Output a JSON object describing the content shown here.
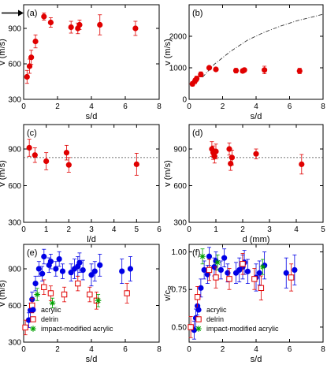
{
  "chart_data": [
    {
      "panel": "(a)",
      "type": "scatter",
      "xlabel": "s/d",
      "ylabel": "v (m/s)",
      "xlim": [
        0,
        8
      ],
      "ylim": [
        300,
        1100
      ],
      "xticks": [
        "0",
        "2",
        "4",
        "6",
        "8"
      ],
      "yticks": [
        "300",
        "600",
        "900"
      ],
      "annotation": "arrow at v = 1030 m/s",
      "series": [
        {
          "marker": "filled-circle",
          "color": "#e00000",
          "x": [
            0.2,
            0.35,
            0.45,
            0.7,
            1.2,
            1.6,
            2.8,
            3.2,
            3.3,
            4.5,
            6.6
          ],
          "y": [
            490,
            580,
            655,
            790,
            1000,
            950,
            910,
            900,
            930,
            930,
            900
          ],
          "err": [
            55,
            60,
            60,
            55,
            30,
            40,
            50,
            45,
            40,
            85,
            60
          ]
        }
      ]
    },
    {
      "panel": "(b)",
      "type": "scatter",
      "xlabel": "s/d",
      "ylabel": "v (m/s)",
      "xlim": [
        0,
        8
      ],
      "ylim": [
        0,
        3000
      ],
      "xticks": [
        "0",
        "2",
        "4",
        "6",
        "8"
      ],
      "yticks": [
        "0",
        "1000",
        "2000"
      ],
      "series": [
        {
          "marker": "filled-circle",
          "color": "#e00000",
          "x": [
            0.2,
            0.35,
            0.45,
            0.7,
            1.2,
            1.6,
            2.8,
            3.2,
            3.3,
            4.5,
            6.6
          ],
          "y": [
            490,
            580,
            655,
            790,
            1000,
            950,
            910,
            900,
            930,
            930,
            900
          ],
          "err": [
            70,
            80,
            80,
            80,
            40,
            55,
            70,
            65,
            60,
            120,
            85
          ]
        }
      ],
      "fit_curve": {
        "style": "dash-dot",
        "x": [
          0.8,
          1.5,
          2.5,
          3.5,
          4.5,
          5.5,
          6.5,
          7.5,
          8.0
        ],
        "y": [
          700,
          1110,
          1530,
          1880,
          2130,
          2330,
          2500,
          2630,
          2700
        ]
      }
    },
    {
      "panel": "(c)",
      "type": "scatter",
      "xlabel": "l/d",
      "ylabel": "v (m/s)",
      "xlim": [
        0,
        6
      ],
      "ylim": [
        300,
        1100
      ],
      "xticks": [
        "0",
        "1",
        "2",
        "3",
        "4",
        "5",
        "6"
      ],
      "yticks": [
        "300",
        "600",
        "900"
      ],
      "reference_line": {
        "style": "dashed",
        "y": 830
      },
      "series": [
        {
          "marker": "filled-circle",
          "color": "#e00000",
          "x": [
            0.25,
            0.5,
            1.0,
            1.9,
            2.0,
            5.0
          ],
          "y": [
            910,
            850,
            800,
            870,
            770,
            775
          ],
          "err": [
            70,
            60,
            70,
            60,
            60,
            90
          ]
        }
      ]
    },
    {
      "panel": "(d)",
      "type": "scatter",
      "xlabel": "d (mm)",
      "ylabel": "v (m/s)",
      "xlim": [
        0,
        5
      ],
      "ylim": [
        300,
        1100
      ],
      "xticks": [
        "0",
        "1",
        "2",
        "3",
        "4",
        "5"
      ],
      "yticks": [
        "300",
        "600",
        "900"
      ],
      "reference_line": {
        "style": "dashed",
        "y": 830
      },
      "series": [
        {
          "marker": "filled-circle",
          "color": "#e00000",
          "x": [
            0.85,
            0.9,
            0.95,
            1.0,
            1.5,
            1.55,
            1.6,
            2.5,
            4.2
          ],
          "y": [
            900,
            870,
            840,
            880,
            900,
            780,
            830,
            860,
            775
          ],
          "err": [
            60,
            55,
            55,
            60,
            50,
            55,
            60,
            40,
            80
          ]
        }
      ]
    },
    {
      "panel": "(e)",
      "type": "scatter",
      "xlabel": "s/d",
      "ylabel": "v (m/s)",
      "xlim": [
        0,
        8
      ],
      "ylim": [
        300,
        1100
      ],
      "xticks": [
        "0",
        "2",
        "4",
        "6",
        "8"
      ],
      "yticks": [
        "300",
        "600",
        "900"
      ],
      "legend_position": "bottom-right",
      "series": [
        {
          "name": "acrylic",
          "marker": "filled-circle",
          "color": "#0000e6",
          "x": [
            0.3,
            0.4,
            0.5,
            0.7,
            0.9,
            1.1,
            1.2,
            1.5,
            1.6,
            1.9,
            2.1,
            2.3,
            2.8,
            3.0,
            3.2,
            3.3,
            3.5,
            4.0,
            4.2,
            4.5,
            5.8,
            6.3
          ],
          "y": [
            480,
            560,
            650,
            780,
            900,
            860,
            1000,
            930,
            960,
            900,
            980,
            880,
            870,
            900,
            920,
            950,
            890,
            850,
            880,
            930,
            880,
            900
          ],
          "err": [
            60,
            60,
            60,
            60,
            60,
            60,
            60,
            60,
            60,
            60,
            60,
            60,
            70,
            80,
            80,
            80,
            80,
            90,
            80,
            90,
            100,
            100
          ]
        },
        {
          "name": "delrin",
          "marker": "open-square",
          "color": "#e00000",
          "x": [
            0.1,
            0.5,
            1.2,
            1.6,
            2.4,
            3.2,
            3.9,
            4.3,
            6.1
          ],
          "y": [
            420,
            600,
            750,
            700,
            690,
            780,
            690,
            640,
            700
          ],
          "err": [
            60,
            60,
            60,
            60,
            60,
            60,
            60,
            70,
            80
          ]
        },
        {
          "name": "impact-modified acrylic",
          "marker": "asterisk",
          "color": "#00a000",
          "x": [
            0.8,
            1.7,
            4.4
          ],
          "y": [
            690,
            620,
            640
          ],
          "err": [
            50,
            40,
            50
          ]
        }
      ]
    },
    {
      "panel": "(f)",
      "type": "scatter",
      "xlabel": "s/d",
      "ylabel": "v/c",
      "ylabel_subscript": "R",
      "xlim": [
        0,
        8
      ],
      "ylim": [
        0.4,
        1.05
      ],
      "xticks": [
        "0",
        "2",
        "4",
        "6",
        "8"
      ],
      "yticks": [
        "0.50",
        "0.75",
        "1.00"
      ],
      "legend_position": "bottom-right",
      "series": [
        {
          "name": "acrylic",
          "marker": "filled-circle",
          "color": "#0000e6",
          "x": [
            0.3,
            0.4,
            0.5,
            0.7,
            0.9,
            1.1,
            1.2,
            1.5,
            1.6,
            1.9,
            2.1,
            2.3,
            2.8,
            3.0,
            3.2,
            3.3,
            3.5,
            4.0,
            4.2,
            4.5,
            5.8,
            6.3
          ],
          "y": [
            0.48,
            0.56,
            0.64,
            0.76,
            0.88,
            0.85,
            0.97,
            0.9,
            0.94,
            0.88,
            0.96,
            0.86,
            0.86,
            0.88,
            0.9,
            0.93,
            0.87,
            0.83,
            0.86,
            0.91,
            0.86,
            0.88
          ],
          "err": [
            0.06,
            0.06,
            0.06,
            0.06,
            0.06,
            0.06,
            0.06,
            0.06,
            0.06,
            0.06,
            0.06,
            0.06,
            0.07,
            0.08,
            0.08,
            0.08,
            0.08,
            0.09,
            0.08,
            0.09,
            0.1,
            0.1
          ]
        },
        {
          "name": "delrin",
          "marker": "open-square",
          "color": "#e00000",
          "x": [
            0.1,
            0.5,
            1.2,
            1.6,
            2.4,
            3.2,
            3.9,
            4.3,
            6.1
          ],
          "y": [
            0.5,
            0.7,
            0.88,
            0.83,
            0.82,
            0.92,
            0.82,
            0.76,
            0.83
          ],
          "err": [
            0.07,
            0.07,
            0.07,
            0.07,
            0.07,
            0.07,
            0.07,
            0.08,
            0.09
          ]
        },
        {
          "name": "impact-modified acrylic",
          "marker": "asterisk",
          "color": "#00a000",
          "x": [
            0.8,
            1.7,
            4.4
          ],
          "y": [
            0.97,
            0.93,
            0.9
          ],
          "err": [
            0.05,
            0.05,
            0.05
          ]
        }
      ]
    }
  ]
}
